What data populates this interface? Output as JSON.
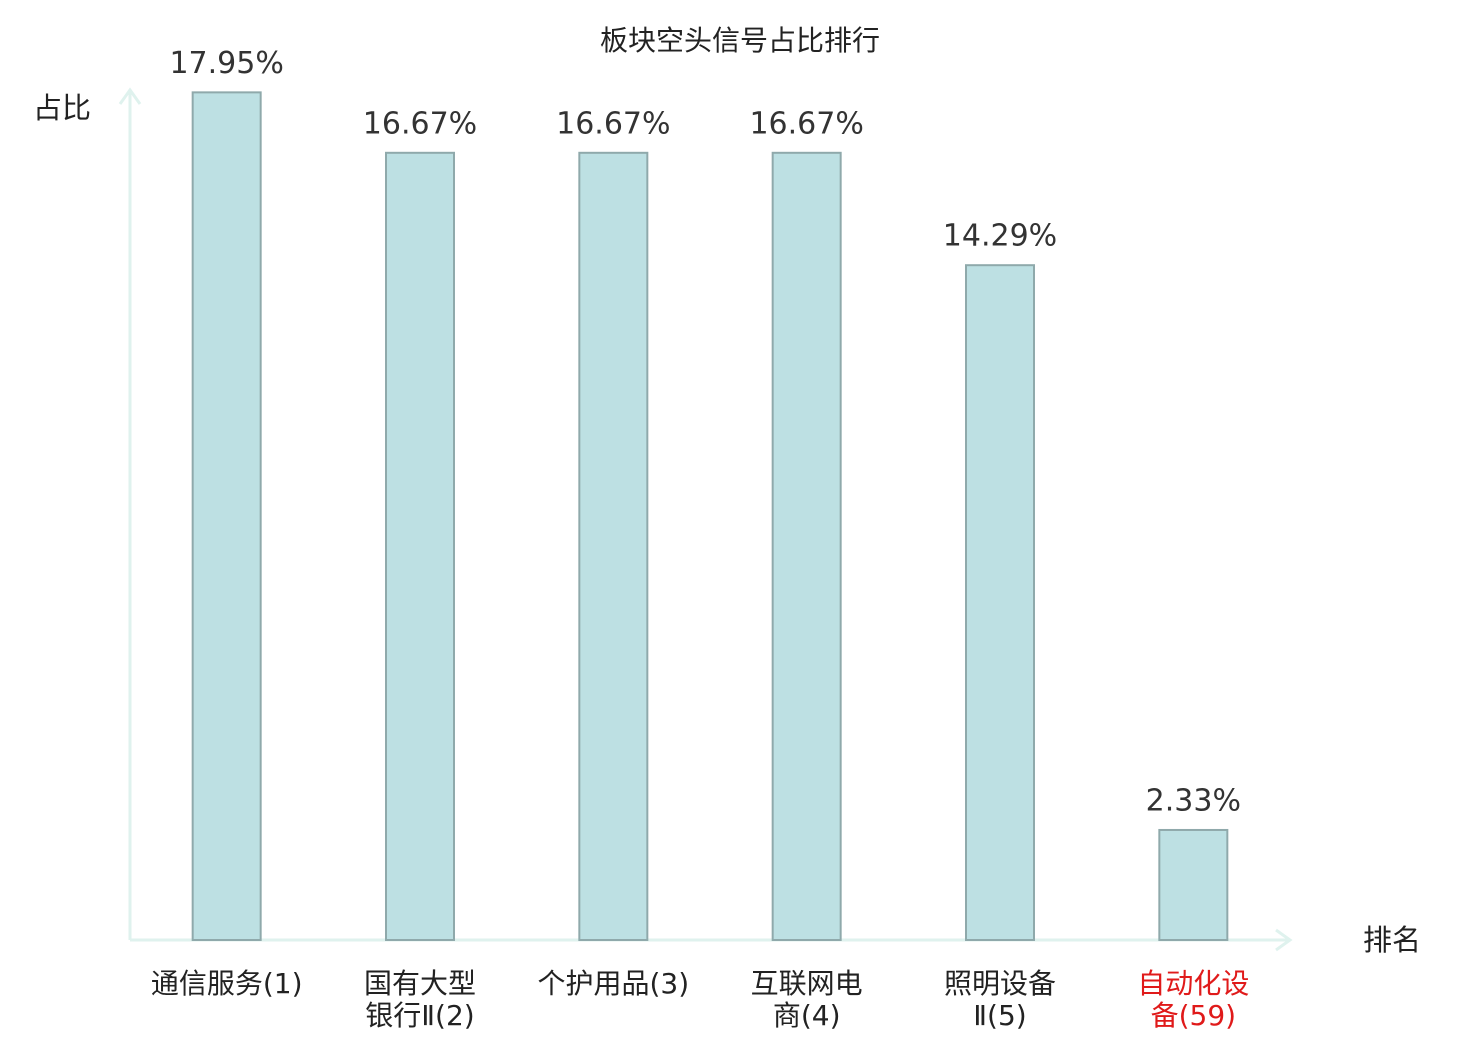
{
  "chart_data": {
    "type": "bar",
    "title": "板块空头信号占比排行",
    "y_label": "占比",
    "x_label": "排名",
    "categories": [
      "通信服务(1)",
      "国有大型银行Ⅱ(2)",
      "个护用品(3)",
      "互联网电商(4)",
      "照明设备Ⅱ(5)",
      "自动化设备(59)"
    ],
    "category_label_colors": [
      "#222222",
      "#222222",
      "#222222",
      "#222222",
      "#222222",
      "#e01a1a"
    ],
    "values": [
      17.95,
      16.67,
      16.67,
      16.67,
      14.29,
      2.33
    ],
    "value_labels": [
      "17.95%",
      "16.67%",
      "16.67%",
      "16.67%",
      "14.29%",
      "2.33%"
    ],
    "color": "#bde0e3",
    "edge_color": "#8fa9ab",
    "axis_color": "#dff2ee",
    "ylim": [
      0,
      18
    ]
  }
}
